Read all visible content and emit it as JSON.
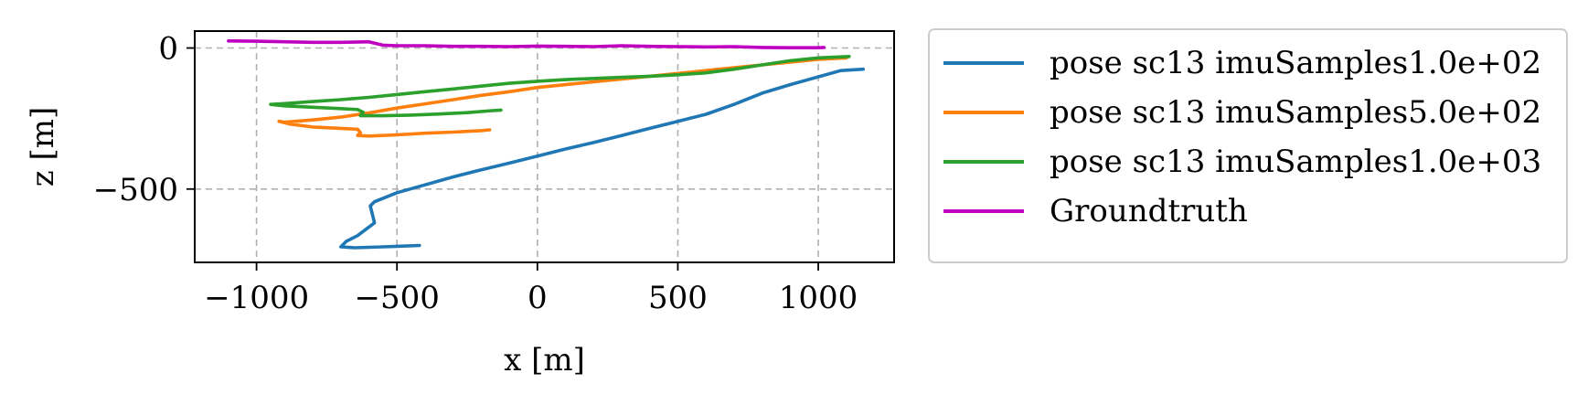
{
  "chart_data": {
    "type": "line",
    "title": "",
    "xlabel": "x [m]",
    "ylabel": "z [m]",
    "xlim": [
      -1220,
      1270
    ],
    "ylim": [
      -760,
      60
    ],
    "xticks": [
      -1000,
      -500,
      0,
      500,
      1000
    ],
    "xtick_labels": [
      "−1000",
      "−500",
      "0",
      "500",
      "1000"
    ],
    "yticks": [
      0,
      -500
    ],
    "ytick_labels": [
      "0",
      "−500"
    ],
    "grid": true,
    "legend_position": "outside-right",
    "series": [
      {
        "name": "pose sc13 imuSamples1.0e+02",
        "color": "#1f77b4",
        "points": [
          [
            1160,
            -75
          ],
          [
            1080,
            -80
          ],
          [
            900,
            -130
          ],
          [
            800,
            -160
          ],
          [
            700,
            -200
          ],
          [
            600,
            -235
          ],
          [
            500,
            -260
          ],
          [
            400,
            -285
          ],
          [
            300,
            -310
          ],
          [
            200,
            -335
          ],
          [
            100,
            -358
          ],
          [
            0,
            -383
          ],
          [
            -100,
            -408
          ],
          [
            -200,
            -432
          ],
          [
            -300,
            -457
          ],
          [
            -400,
            -485
          ],
          [
            -500,
            -513
          ],
          [
            -580,
            -545
          ],
          [
            -595,
            -560
          ],
          [
            -590,
            -580
          ],
          [
            -580,
            -620
          ],
          [
            -620,
            -650
          ],
          [
            -640,
            -665
          ],
          [
            -680,
            -685
          ],
          [
            -700,
            -705
          ],
          [
            -650,
            -708
          ],
          [
            -550,
            -705
          ],
          [
            -500,
            -703
          ],
          [
            -420,
            -700
          ]
        ]
      },
      {
        "name": "pose sc13 imuSamples5.0e+02",
        "color": "#ff7f0e",
        "points": [
          [
            1100,
            -35
          ],
          [
            1000,
            -40
          ],
          [
            900,
            -50
          ],
          [
            800,
            -60
          ],
          [
            700,
            -70
          ],
          [
            600,
            -80
          ],
          [
            500,
            -90
          ],
          [
            400,
            -100
          ],
          [
            300,
            -110
          ],
          [
            200,
            -120
          ],
          [
            100,
            -130
          ],
          [
            0,
            -140
          ],
          [
            -100,
            -155
          ],
          [
            -200,
            -168
          ],
          [
            -300,
            -183
          ],
          [
            -400,
            -198
          ],
          [
            -500,
            -213
          ],
          [
            -600,
            -230
          ],
          [
            -700,
            -245
          ],
          [
            -800,
            -255
          ],
          [
            -900,
            -263
          ],
          [
            -920,
            -260
          ],
          [
            -880,
            -270
          ],
          [
            -800,
            -280
          ],
          [
            -700,
            -285
          ],
          [
            -640,
            -288
          ],
          [
            -630,
            -300
          ],
          [
            -640,
            -310
          ],
          [
            -600,
            -312
          ],
          [
            -500,
            -308
          ],
          [
            -400,
            -302
          ],
          [
            -300,
            -298
          ],
          [
            -200,
            -293
          ],
          [
            -170,
            -290
          ]
        ]
      },
      {
        "name": "pose sc13 imuSamples1.0e+03",
        "color": "#2ca02c",
        "points": [
          [
            1110,
            -30
          ],
          [
            1000,
            -35
          ],
          [
            900,
            -45
          ],
          [
            800,
            -60
          ],
          [
            700,
            -75
          ],
          [
            600,
            -88
          ],
          [
            500,
            -95
          ],
          [
            400,
            -100
          ],
          [
            300,
            -104
          ],
          [
            200,
            -108
          ],
          [
            100,
            -112
          ],
          [
            0,
            -118
          ],
          [
            -100,
            -125
          ],
          [
            -200,
            -135
          ],
          [
            -300,
            -145
          ],
          [
            -400,
            -155
          ],
          [
            -500,
            -165
          ],
          [
            -600,
            -175
          ],
          [
            -700,
            -183
          ],
          [
            -800,
            -190
          ],
          [
            -900,
            -197
          ],
          [
            -950,
            -200
          ],
          [
            -900,
            -205
          ],
          [
            -800,
            -210
          ],
          [
            -700,
            -215
          ],
          [
            -640,
            -218
          ],
          [
            -620,
            -228
          ],
          [
            -630,
            -240
          ],
          [
            -550,
            -240
          ],
          [
            -450,
            -238
          ],
          [
            -350,
            -234
          ],
          [
            -250,
            -229
          ],
          [
            -160,
            -222
          ],
          [
            -130,
            -220
          ]
        ]
      },
      {
        "name": "Groundtruth",
        "color": "#c000c0",
        "points": [
          [
            -1100,
            25
          ],
          [
            -1000,
            24
          ],
          [
            -900,
            22
          ],
          [
            -800,
            20
          ],
          [
            -700,
            20
          ],
          [
            -600,
            22
          ],
          [
            -550,
            10
          ],
          [
            -500,
            8
          ],
          [
            -400,
            8
          ],
          [
            -300,
            6
          ],
          [
            -200,
            6
          ],
          [
            -100,
            5
          ],
          [
            0,
            7
          ],
          [
            100,
            6
          ],
          [
            200,
            5
          ],
          [
            300,
            8
          ],
          [
            400,
            6
          ],
          [
            500,
            5
          ],
          [
            600,
            4
          ],
          [
            700,
            5
          ],
          [
            800,
            2
          ],
          [
            900,
            1
          ],
          [
            1000,
            1
          ],
          [
            1020,
            2
          ]
        ]
      }
    ]
  }
}
